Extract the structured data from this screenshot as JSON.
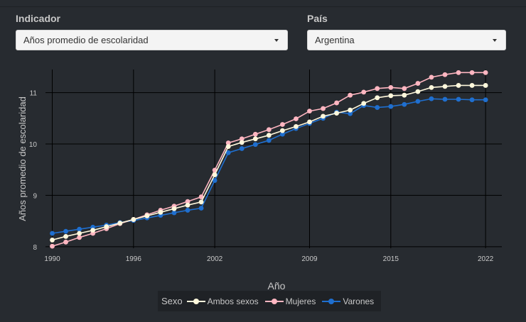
{
  "controls": {
    "indicador": {
      "label": "Indicador",
      "selected": "Años promedio de escolaridad"
    },
    "pais": {
      "label": "País",
      "selected": "Argentina"
    }
  },
  "legend": {
    "title": "Sexo",
    "items": [
      {
        "label": "Ambos sexos",
        "color": "#fff8dc"
      },
      {
        "label": "Mujeres",
        "color": "#ffb6c1"
      },
      {
        "label": "Varones",
        "color": "#1f6fcf"
      }
    ]
  },
  "colors": {
    "background": "#272b30",
    "grid": "#000000",
    "text": "#c8c8c8"
  },
  "chart_data": {
    "type": "line",
    "xlabel": "Año",
    "ylabel": "Años promedio de escolaridad",
    "xlim": [
      1989.5,
      2023.2
    ],
    "ylim": [
      7.97,
      11.45
    ],
    "xticks": [
      1990,
      1996,
      2002,
      2009,
      2015,
      2022
    ],
    "yticks": [
      8,
      9,
      10,
      11
    ],
    "grid": true,
    "legend_position": "bottom",
    "x": [
      1990,
      1991,
      1992,
      1993,
      1994,
      1995,
      1996,
      1997,
      1998,
      1999,
      2000,
      2001,
      2002,
      2003,
      2004,
      2005,
      2006,
      2007,
      2008,
      2009,
      2010,
      2011,
      2012,
      2013,
      2014,
      2015,
      2016,
      2017,
      2018,
      2019,
      2020,
      2021,
      2022
    ],
    "series": [
      {
        "name": "Ambos sexos",
        "color": "#fff8dc",
        "values": [
          8.13,
          8.2,
          8.26,
          8.32,
          8.39,
          8.46,
          8.53,
          8.6,
          8.67,
          8.74,
          8.81,
          8.87,
          9.4,
          9.95,
          10.03,
          10.1,
          10.17,
          10.26,
          10.34,
          10.43,
          10.54,
          10.6,
          10.66,
          10.79,
          10.9,
          10.94,
          10.95,
          11.02,
          11.1,
          11.12,
          11.14,
          11.14,
          11.14
        ]
      },
      {
        "name": "Mujeres",
        "color": "#ffb6c1",
        "values": [
          8.01,
          8.09,
          8.18,
          8.26,
          8.35,
          8.45,
          8.53,
          8.62,
          8.71,
          8.79,
          8.88,
          8.97,
          9.49,
          10.02,
          10.1,
          10.19,
          10.28,
          10.38,
          10.49,
          10.64,
          10.69,
          10.8,
          10.95,
          11.01,
          11.08,
          11.1,
          11.08,
          11.18,
          11.3,
          11.35,
          11.39,
          11.39,
          11.39
        ]
      },
      {
        "name": "Varones",
        "color": "#1f6fcf",
        "values": [
          8.26,
          8.3,
          8.34,
          8.38,
          8.42,
          8.47,
          8.51,
          8.56,
          8.61,
          8.66,
          8.71,
          8.75,
          9.29,
          9.83,
          9.91,
          9.99,
          10.07,
          10.19,
          10.3,
          10.4,
          10.5,
          10.62,
          10.59,
          10.75,
          10.71,
          10.73,
          10.77,
          10.83,
          10.88,
          10.87,
          10.87,
          10.86,
          10.86
        ]
      }
    ]
  }
}
